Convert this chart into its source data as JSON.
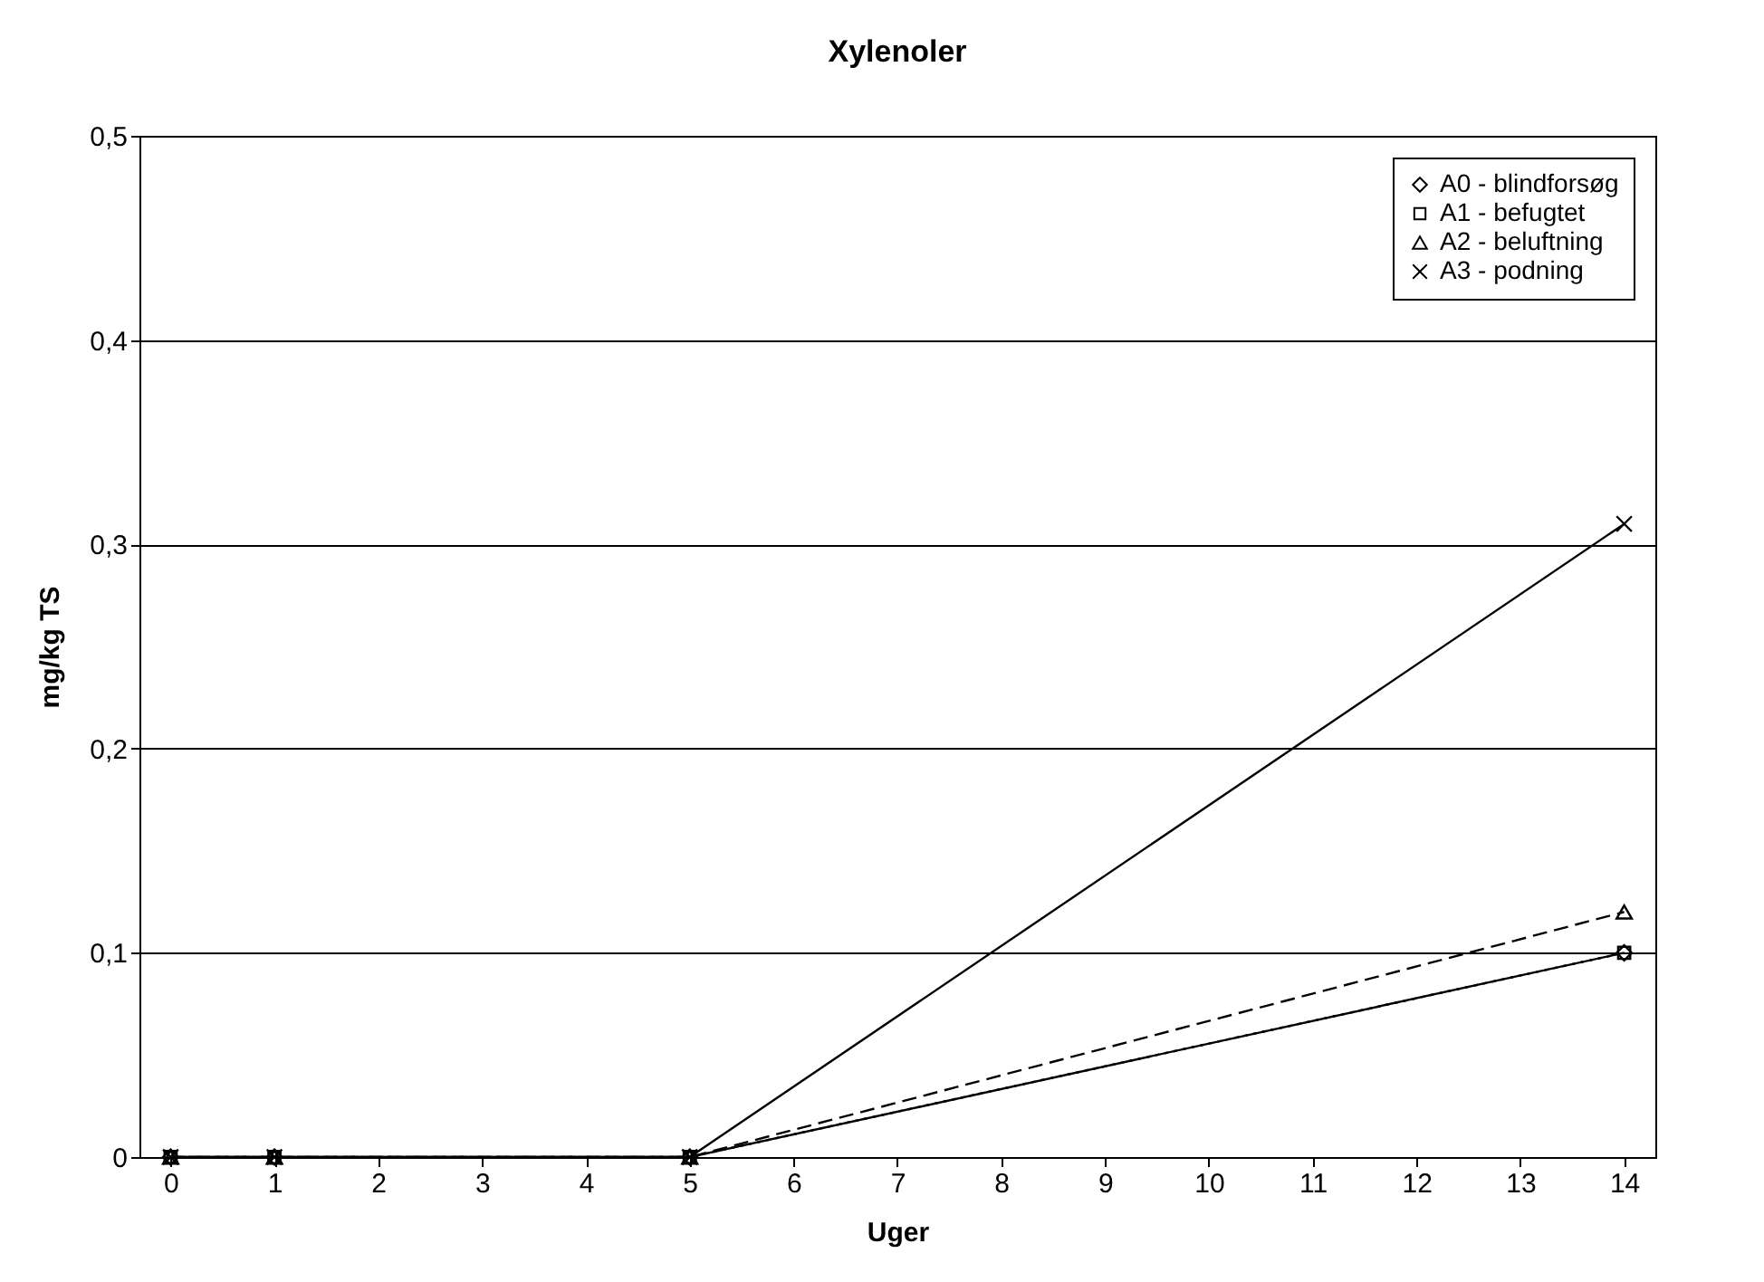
{
  "chart_data": {
    "type": "line",
    "title": "Xylenoler",
    "xlabel": "Uger",
    "ylabel": "mg/kg TS",
    "x": [
      0,
      1,
      5,
      14
    ],
    "xlim": [
      -0.3,
      14.3
    ],
    "xticks": [
      0,
      1,
      2,
      3,
      4,
      5,
      6,
      7,
      8,
      9,
      10,
      11,
      12,
      13,
      14
    ],
    "ylim": [
      0,
      0.5
    ],
    "yticks": [
      {
        "value": 0,
        "label": "0"
      },
      {
        "value": 0.1,
        "label": "0,1"
      },
      {
        "value": 0.2,
        "label": "0,2"
      },
      {
        "value": 0.3,
        "label": "0,3"
      },
      {
        "value": 0.4,
        "label": "0,4"
      },
      {
        "value": 0.5,
        "label": "0,5"
      }
    ],
    "grid": "y",
    "legend": "top right",
    "series": [
      {
        "name": "A0 - blindforsøg",
        "color": "#000000",
        "marker": "diamond",
        "line_style": "solid",
        "values": [
          0,
          0,
          0,
          0.1
        ]
      },
      {
        "name": "A1 - befugtet",
        "color": "#000000",
        "marker": "square",
        "line_style": "dotted",
        "values": [
          0,
          0,
          0,
          0.1
        ]
      },
      {
        "name": "A2 - beluftning",
        "color": "#000000",
        "marker": "triangle",
        "line_style": "dashed",
        "values": [
          0,
          0,
          0,
          0.12
        ]
      },
      {
        "name": "A3 - podning",
        "color": "#000000",
        "marker": "cross",
        "line_style": "solid",
        "values": [
          0,
          0,
          0,
          0.31
        ]
      }
    ]
  }
}
